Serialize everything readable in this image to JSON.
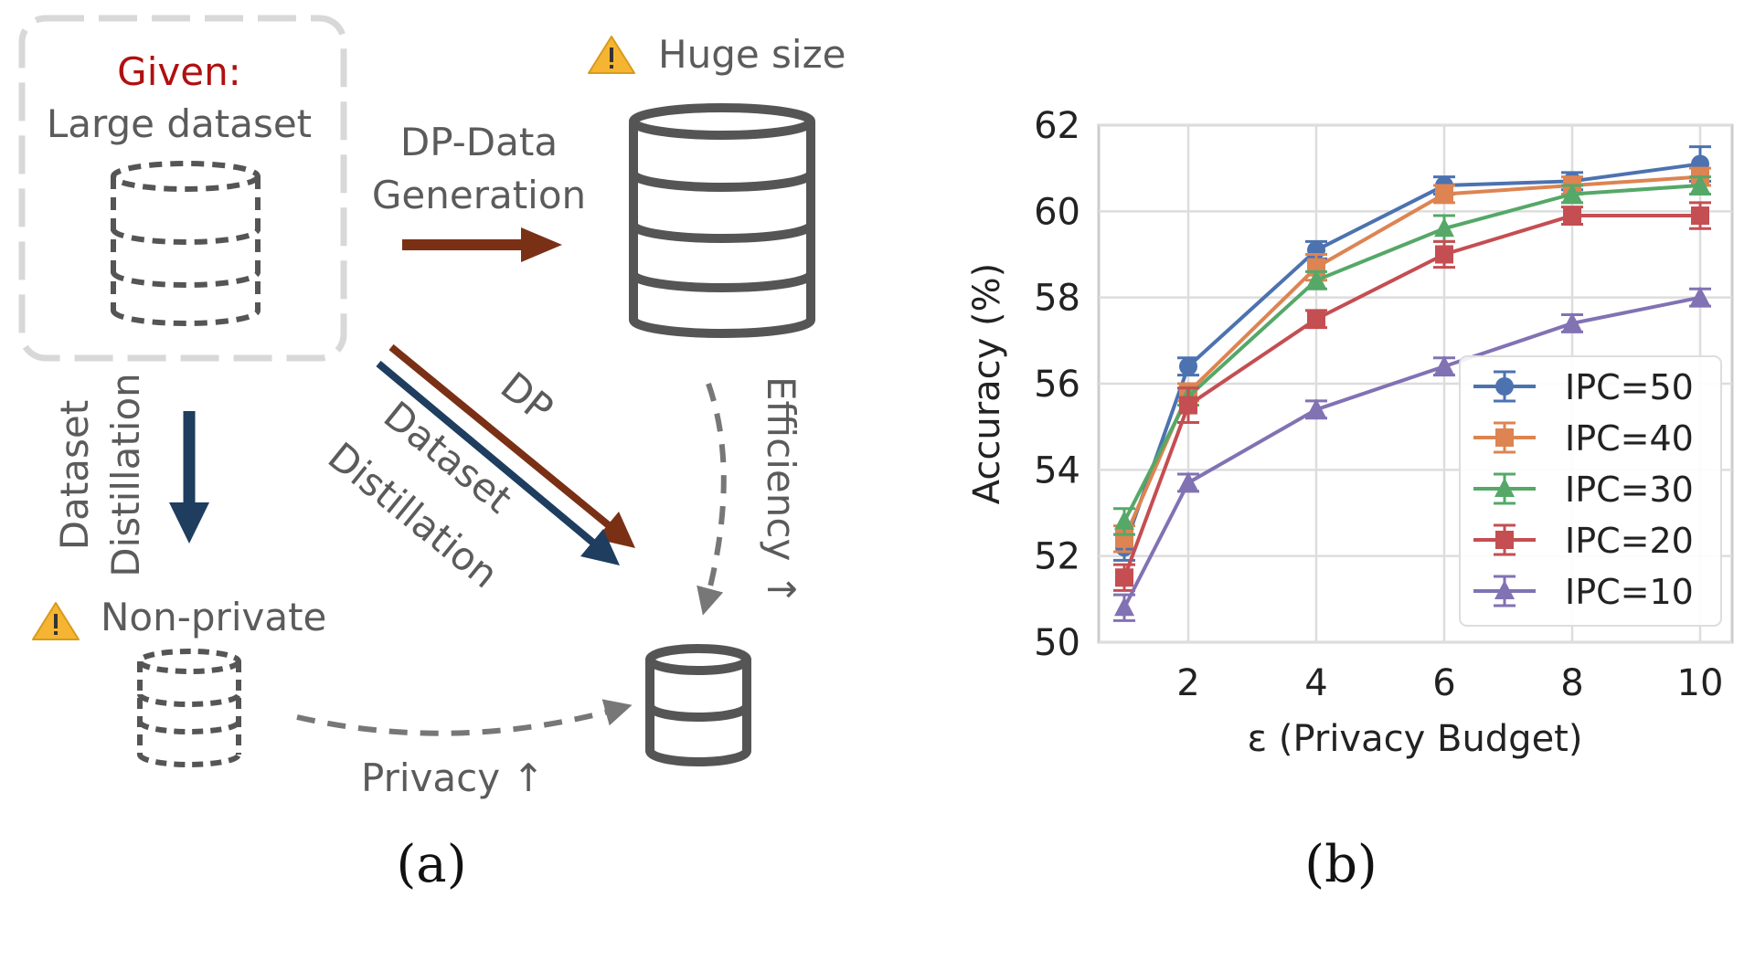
{
  "panel_a": {
    "given_label": "Given:",
    "large_dataset_label": "Large dataset",
    "huge_size_label": "Huge size",
    "dp_data_generation_line1": "DP-Data",
    "dp_data_generation_line2": "Generation",
    "dataset_distillation_left_line1": "Dataset",
    "dataset_distillation_left_line2": "Distillation",
    "non_private_label": "Non-private",
    "dp_label": "DP",
    "dataset_distillation_diag_line1": "Dataset",
    "dataset_distillation_diag_line2": "Distillation",
    "efficiency_label": "Efficiency ↑",
    "privacy_label": "Privacy ↑",
    "caption": "(a)",
    "colors": {
      "given": "#b01010",
      "dp_arrow": "#7a3015",
      "distill_arrow": "#1e3d5f",
      "text": "#5b5b5b",
      "cylinder": "#555555",
      "dashed_frame": "#d8d8d8",
      "warning": "#f5b533"
    },
    "icons": [
      "warning-icon",
      "database-icon"
    ]
  },
  "panel_b": {
    "caption": "(b)"
  },
  "chart_data": {
    "type": "line",
    "xlabel": "ε (Privacy Budget)",
    "ylabel": "Accuracy (%)",
    "x": [
      1,
      2,
      4,
      6,
      8,
      10
    ],
    "xticks": [
      "2",
      "4",
      "6",
      "8",
      "10"
    ],
    "xtick_values": [
      2,
      4,
      6,
      8,
      10
    ],
    "yticks": [
      "50",
      "52",
      "54",
      "56",
      "58",
      "60",
      "62"
    ],
    "ytick_values": [
      50,
      52,
      54,
      56,
      58,
      60,
      62
    ],
    "xlim": [
      0.6,
      10.5
    ],
    "ylim": [
      50,
      62
    ],
    "grid": true,
    "legend_position": "lower-right",
    "series": [
      {
        "name": "IPC=50",
        "color": "#4c72b0",
        "marker": "circle",
        "values": [
          52.2,
          56.4,
          59.1,
          60.6,
          60.7,
          61.1
        ],
        "errors": [
          0.3,
          0.2,
          0.2,
          0.2,
          0.2,
          0.4
        ]
      },
      {
        "name": "IPC=40",
        "color": "#dd8452",
        "marker": "square",
        "values": [
          52.4,
          55.8,
          58.7,
          60.4,
          60.6,
          60.8
        ],
        "errors": [
          0.3,
          0.2,
          0.3,
          0.2,
          0.2,
          0.2
        ]
      },
      {
        "name": "IPC=30",
        "color": "#55a868",
        "marker": "triangle",
        "values": [
          52.8,
          55.7,
          58.4,
          59.6,
          60.4,
          60.6
        ],
        "errors": [
          0.3,
          0.2,
          0.2,
          0.3,
          0.2,
          0.2
        ]
      },
      {
        "name": "IPC=20",
        "color": "#c44e52",
        "marker": "square",
        "values": [
          51.5,
          55.5,
          57.5,
          59.0,
          59.9,
          59.9
        ],
        "errors": [
          0.3,
          0.4,
          0.2,
          0.3,
          0.2,
          0.3
        ]
      },
      {
        "name": "IPC=10",
        "color": "#8172b3",
        "marker": "triangle",
        "values": [
          50.8,
          53.7,
          55.4,
          56.4,
          57.4,
          58.0
        ],
        "errors": [
          0.3,
          0.2,
          0.2,
          0.2,
          0.2,
          0.2
        ]
      }
    ]
  }
}
